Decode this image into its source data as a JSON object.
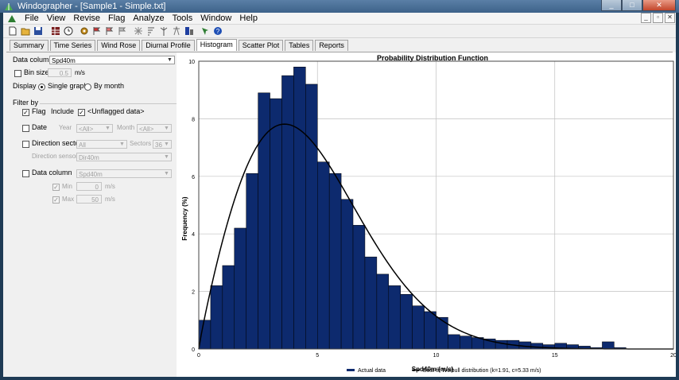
{
  "window": {
    "title": "Windographer - [Sample1 - Simple.txt]",
    "buttons": [
      "_",
      "□",
      "✕"
    ]
  },
  "menu": [
    "File",
    "View",
    "Revise",
    "Flag",
    "Analyze",
    "Tools",
    "Window",
    "Help"
  ],
  "tabs": [
    {
      "label": "Summary",
      "active": false
    },
    {
      "label": "Time Series",
      "active": false
    },
    {
      "label": "Wind Rose",
      "active": false
    },
    {
      "label": "Diurnal Profile",
      "active": false
    },
    {
      "label": "Histogram",
      "active": true
    },
    {
      "label": "Scatter Plot",
      "active": false
    },
    {
      "label": "Tables",
      "active": false
    },
    {
      "label": "Reports",
      "active": false
    }
  ],
  "options": {
    "data_column_label": "Data column",
    "data_column_value": "Spd40m",
    "bin_size_label": "Bin size",
    "bin_size_value": "0.5",
    "bin_size_unit": "m/s",
    "display_label": "Display",
    "display_single": "Single graph",
    "display_month": "By month"
  },
  "filter": {
    "heading": "Filter by",
    "flag_label": "Flag",
    "include_label": "Include",
    "unflagged_label": "<Unflagged data>",
    "date_label": "Date",
    "year_label": "Year",
    "year_value": "<All>",
    "month_label": "Month",
    "month_value": "<All>",
    "direction_label": "Direction sector",
    "direction_value": "All",
    "sectors_label": "Sectors",
    "sectors_value": "36",
    "dir_sensor_label": "Direction sensor",
    "dir_sensor_value": "Dir40m",
    "data_column_label": "Data column",
    "data_column_value": "Spd40m",
    "min_label": "Min",
    "min_value": "0",
    "max_label": "Max",
    "max_value": "50",
    "unit": "m/s"
  },
  "colors": {
    "bar": "#0d2a6e",
    "line": "#000000",
    "accent": "#3d6289"
  },
  "chart_data": {
    "type": "bar",
    "title": "Probability Distribution Function",
    "xlabel": "Spd40m (m/s)",
    "ylabel": "Frequency (%)",
    "xlim": [
      0,
      20
    ],
    "ylim": [
      0,
      10
    ],
    "xticks": [
      "0",
      "5",
      "10",
      "15",
      "20"
    ],
    "yticks": [
      "0",
      "2",
      "4",
      "6",
      "8",
      "10"
    ],
    "bin_width": 0.5,
    "bin_starts": [
      0,
      0.5,
      1,
      1.5,
      2,
      2.5,
      3,
      3.5,
      4,
      4.5,
      5,
      5.5,
      6,
      6.5,
      7,
      7.5,
      8,
      8.5,
      9,
      9.5,
      10,
      10.5,
      11,
      11.5,
      12,
      12.5,
      13,
      13.5,
      14,
      14.5,
      15,
      15.5,
      16,
      16.5,
      17,
      17.5
    ],
    "series": [
      {
        "name": "Actual data",
        "values": [
          1.0,
          2.2,
          2.9,
          4.2,
          6.1,
          8.9,
          8.7,
          9.5,
          9.8,
          9.2,
          6.5,
          6.1,
          5.2,
          4.3,
          3.2,
          2.6,
          2.2,
          1.9,
          1.5,
          1.3,
          1.1,
          0.5,
          0.45,
          0.4,
          0.35,
          0.3,
          0.3,
          0.25,
          0.2,
          0.15,
          0.2,
          0.15,
          0.1,
          0.05,
          0.25,
          0.05
        ]
      },
      {
        "name": "Best-fit Weibull distribution (k=1.91, c=5.33 m/s)",
        "k": 1.91,
        "c": 5.33
      }
    ],
    "legend": [
      "Actual data",
      "Best-fit Weibull distribution (k=1.91, c=5.33 m/s)"
    ],
    "legend_position": "bottom",
    "grid": true
  }
}
